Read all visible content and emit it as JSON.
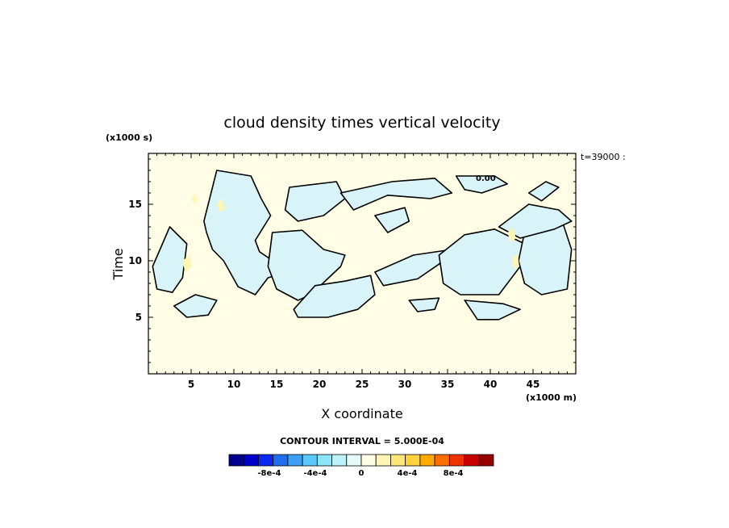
{
  "chart_data": {
    "type": "heatmap",
    "title": "cloud density times vertical velocity",
    "xlabel": "X coordinate",
    "ylabel": "Time",
    "x_units": "(x1000 m)",
    "y_units": "(x1000 s)",
    "annotation": "t=39000 :",
    "xlim": [
      0,
      50
    ],
    "ylim": [
      0,
      19.5
    ],
    "x_ticks": [
      5,
      10,
      15,
      20,
      25,
      30,
      35,
      40,
      45
    ],
    "y_ticks": [
      5,
      10,
      15
    ],
    "contour_interval_label": "CONTOUR INTERVAL = 5.000E-04",
    "contour_line_label": "0.00",
    "background_color": "#fffde6",
    "negative_fill_color": "#d8f4f8",
    "colorbar": {
      "colors": [
        "#00008c",
        "#0000c8",
        "#0a28f0",
        "#1e6ef0",
        "#3ca0f5",
        "#5ac8fa",
        "#8ce6fa",
        "#bef2fa",
        "#e6fafa",
        "#fffde6",
        "#fff5b4",
        "#ffe678",
        "#ffd23c",
        "#ffaa00",
        "#ff6e00",
        "#f03200",
        "#c80000",
        "#960000"
      ],
      "tick_labels": [
        "-8e-4",
        "-4e-4",
        "0",
        "4e-4",
        "8e-4"
      ],
      "tick_values": [
        -0.0008,
        -0.0004,
        0,
        0.0004,
        0.0008
      ],
      "range": [
        -0.00115,
        0.00115
      ]
    },
    "regions": [
      {
        "sign": "negative",
        "points": [
          [
            6.5,
            13.5
          ],
          [
            8.0,
            18.0
          ],
          [
            12.0,
            17.5
          ],
          [
            13.2,
            15.5
          ],
          [
            14.3,
            14.0
          ],
          [
            12.5,
            11.8
          ],
          [
            13.0,
            10.8
          ],
          [
            16.5,
            9.0
          ],
          [
            14.0,
            8.5
          ],
          [
            12.5,
            7.0
          ],
          [
            10.5,
            7.7
          ],
          [
            8.8,
            10.0
          ],
          [
            7.5,
            11.0
          ],
          [
            6.8,
            12.5
          ]
        ]
      },
      {
        "sign": "negative",
        "points": [
          [
            0.5,
            9.5
          ],
          [
            2.5,
            13.0
          ],
          [
            4.5,
            11.5
          ],
          [
            4.0,
            8.5
          ],
          [
            2.8,
            7.2
          ],
          [
            1.0,
            7.5
          ]
        ]
      },
      {
        "sign": "negative",
        "points": [
          [
            16.5,
            16.5
          ],
          [
            22.0,
            17.0
          ],
          [
            23.0,
            15.5
          ],
          [
            20.5,
            14.0
          ],
          [
            17.5,
            13.5
          ],
          [
            16.0,
            14.5
          ]
        ]
      },
      {
        "sign": "negative",
        "points": [
          [
            14.5,
            12.5
          ],
          [
            18.0,
            12.7
          ],
          [
            20.5,
            11.0
          ],
          [
            23.0,
            10.5
          ],
          [
            22.5,
            9.5
          ],
          [
            19.0,
            7.0
          ],
          [
            17.5,
            6.5
          ],
          [
            15.0,
            7.5
          ],
          [
            14.0,
            9.5
          ]
        ]
      },
      {
        "sign": "negative",
        "points": [
          [
            22.5,
            16.0
          ],
          [
            28.5,
            17.0
          ],
          [
            33.5,
            17.3
          ],
          [
            35.5,
            16.0
          ],
          [
            33.0,
            15.5
          ],
          [
            28.0,
            15.8
          ],
          [
            24.0,
            14.5
          ]
        ]
      },
      {
        "sign": "negative",
        "points": [
          [
            36.0,
            17.5
          ],
          [
            40.5,
            17.5
          ],
          [
            42.0,
            16.8
          ],
          [
            39.0,
            16.0
          ],
          [
            37.0,
            16.3
          ]
        ]
      },
      {
        "sign": "negative",
        "points": [
          [
            17.0,
            5.7
          ],
          [
            19.5,
            7.8
          ],
          [
            23.0,
            8.2
          ],
          [
            26.0,
            8.7
          ],
          [
            26.5,
            7.0
          ],
          [
            24.5,
            5.7
          ],
          [
            21.0,
            5.0
          ],
          [
            17.5,
            5.0
          ]
        ]
      },
      {
        "sign": "negative",
        "points": [
          [
            26.5,
            9.0
          ],
          [
            31.0,
            10.5
          ],
          [
            35.5,
            11.0
          ],
          [
            34.0,
            9.7
          ],
          [
            31.5,
            8.4
          ],
          [
            27.5,
            7.8
          ]
        ]
      },
      {
        "sign": "negative",
        "points": [
          [
            34.0,
            10.5
          ],
          [
            37.0,
            12.3
          ],
          [
            40.5,
            12.8
          ],
          [
            44.0,
            11.5
          ],
          [
            45.0,
            10.0
          ],
          [
            43.5,
            9.5
          ],
          [
            41.0,
            7.0
          ],
          [
            36.5,
            7.0
          ],
          [
            34.5,
            8.0
          ]
        ]
      },
      {
        "sign": "negative",
        "points": [
          [
            44.0,
            12.5
          ],
          [
            48.5,
            13.3
          ],
          [
            49.5,
            11.0
          ],
          [
            49.0,
            7.5
          ],
          [
            46.0,
            7.0
          ],
          [
            44.0,
            8.0
          ],
          [
            43.3,
            10.0
          ]
        ]
      },
      {
        "sign": "negative",
        "points": [
          [
            41.0,
            13.0
          ],
          [
            44.5,
            15.0
          ],
          [
            48.0,
            14.5
          ],
          [
            49.5,
            13.5
          ],
          [
            47.5,
            12.8
          ],
          [
            43.5,
            12.0
          ]
        ]
      },
      {
        "sign": "negative",
        "points": [
          [
            30.5,
            6.5
          ],
          [
            34.0,
            6.7
          ],
          [
            33.5,
            5.7
          ],
          [
            31.5,
            5.5
          ]
        ]
      },
      {
        "sign": "negative",
        "points": [
          [
            37.0,
            6.5
          ],
          [
            41.5,
            6.2
          ],
          [
            43.5,
            5.7
          ],
          [
            41.0,
            4.8
          ],
          [
            38.5,
            4.8
          ]
        ]
      },
      {
        "sign": "negative",
        "points": [
          [
            3.0,
            6.0
          ],
          [
            5.5,
            7.0
          ],
          [
            8.0,
            6.5
          ],
          [
            7.0,
            5.2
          ],
          [
            4.5,
            5.0
          ]
        ]
      },
      {
        "sign": "negative",
        "points": [
          [
            26.5,
            14.0
          ],
          [
            30.0,
            14.7
          ],
          [
            30.5,
            13.5
          ],
          [
            28.0,
            12.5
          ]
        ]
      },
      {
        "sign": "negative",
        "points": [
          [
            44.5,
            16.0
          ],
          [
            46.5,
            17.0
          ],
          [
            48.0,
            16.5
          ],
          [
            46.0,
            15.3
          ]
        ]
      },
      {
        "sign": "positive",
        "points": [
          [
            4.0,
            10.0
          ],
          [
            4.8,
            10.5
          ],
          [
            5.1,
            9.5
          ],
          [
            4.3,
            8.9
          ]
        ]
      },
      {
        "sign": "positive",
        "points": [
          [
            8.0,
            15.0
          ],
          [
            8.6,
            15.5
          ],
          [
            9.0,
            14.6
          ],
          [
            8.4,
            14.3
          ]
        ]
      },
      {
        "sign": "positive",
        "points": [
          [
            42.0,
            12.5
          ],
          [
            42.7,
            12.9
          ],
          [
            43.0,
            12.0
          ],
          [
            42.4,
            11.6
          ]
        ]
      },
      {
        "sign": "positive",
        "points": [
          [
            42.5,
            10.2
          ],
          [
            43.2,
            10.6
          ],
          [
            43.4,
            9.5
          ],
          [
            42.8,
            9.3
          ]
        ]
      },
      {
        "sign": "positive",
        "points": [
          [
            5.0,
            15.5
          ],
          [
            5.5,
            15.9
          ],
          [
            5.8,
            15.3
          ],
          [
            5.3,
            15.1
          ]
        ]
      }
    ]
  }
}
